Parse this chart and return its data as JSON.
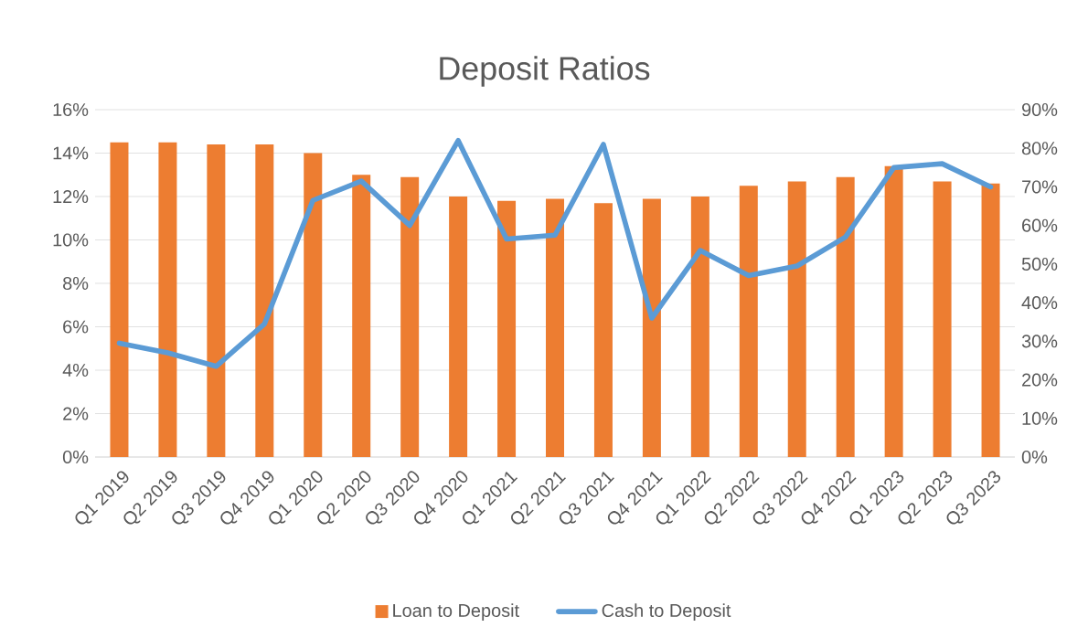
{
  "chart_data": {
    "type": "bar",
    "title": "Deposit Ratios",
    "categories": [
      "Q1 2019",
      "Q2 2019",
      "Q3 2019",
      "Q4 2019",
      "Q1 2020",
      "Q2 2020",
      "Q3 2020",
      "Q4 2020",
      "Q1 2021",
      "Q2 2021",
      "Q3 2021",
      "Q4 2021",
      "Q1 2022",
      "Q2 2022",
      "Q3 2022",
      "Q4 2022",
      "Q1 2023",
      "Q2 2023",
      "Q3 2023"
    ],
    "series": [
      {
        "name": "Loan to Deposit",
        "color": "#ed7d31",
        "values": [
          14.5,
          14.5,
          14.4,
          14.4,
          14.0,
          13.0,
          12.9,
          12.0,
          11.8,
          11.9,
          11.7,
          11.9,
          12.0,
          12.5,
          12.7,
          12.9,
          13.4,
          12.7,
          12.6
        ]
      },
      {
        "name": "Cash to Deposit",
        "type": "line",
        "axis": "y2",
        "color": "#5b9bd5",
        "values": [
          29.5,
          27,
          23.5,
          34.5,
          66.5,
          71.5,
          60,
          82,
          56.5,
          57.5,
          81,
          36,
          53.5,
          47,
          49.5,
          57,
          75,
          76,
          70
        ]
      }
    ],
    "ylim": [
      0,
      16
    ],
    "yticks": [
      {
        "value": 0,
        "label": "0%"
      },
      {
        "value": 2,
        "label": "2%"
      },
      {
        "value": 4,
        "label": "4%"
      },
      {
        "value": 6,
        "label": "6%"
      },
      {
        "value": 8,
        "label": "8%"
      },
      {
        "value": 10,
        "label": "10%"
      },
      {
        "value": 12,
        "label": "12%"
      },
      {
        "value": 14,
        "label": "14%"
      },
      {
        "value": 16,
        "label": "16%"
      }
    ],
    "y2lim": [
      0,
      90
    ],
    "y2ticks": [
      {
        "value": 0,
        "label": "0%"
      },
      {
        "value": 10,
        "label": "10%"
      },
      {
        "value": 20,
        "label": "20%"
      },
      {
        "value": 30,
        "label": "30%"
      },
      {
        "value": 40,
        "label": "40%"
      },
      {
        "value": 50,
        "label": "50%"
      },
      {
        "value": 60,
        "label": "60%"
      },
      {
        "value": 70,
        "label": "70%"
      },
      {
        "value": 80,
        "label": "80%"
      },
      {
        "value": 90,
        "label": "90%"
      }
    ],
    "grid": "y",
    "legend": "bottom",
    "marker": "none",
    "line_style": "solid"
  }
}
